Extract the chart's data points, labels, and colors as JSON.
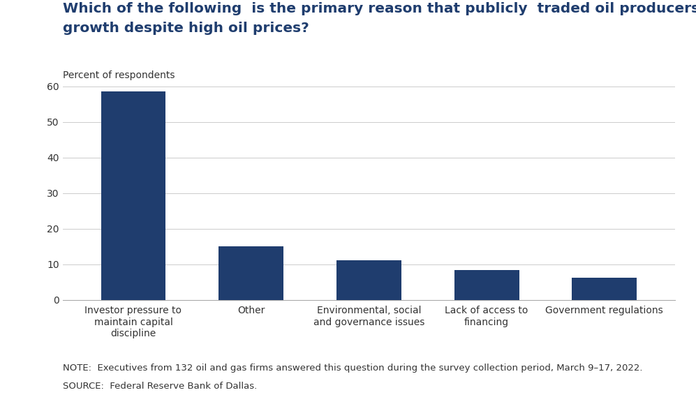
{
  "title_line1": "Which of the following  is the primary reason that publicly  traded oil producers are restraining",
  "title_line2": "growth despite high oil prices?",
  "ylabel": "Percent of respondents",
  "categories": [
    "Investor pressure to\nmaintain capital\ndiscipline",
    "Other",
    "Environmental, social\nand governance issues",
    "Lack of access to\nfinancing",
    "Government regulations"
  ],
  "values": [
    58.5,
    15.0,
    11.2,
    8.4,
    6.2
  ],
  "bar_color": "#1f3d6e",
  "ylim": [
    0,
    60
  ],
  "yticks": [
    0,
    10,
    20,
    30,
    40,
    50,
    60
  ],
  "note_line1": "NOTE:  Executives from 132 oil and gas firms answered this question during the survey collection period, March 9–17, 2022.",
  "note_line2": "SOURCE:  Federal Reserve Bank of Dallas.",
  "title_color": "#1f3d6e",
  "title_fontsize": 14.5,
  "ylabel_fontsize": 10,
  "tick_fontsize": 10,
  "note_fontsize": 9.5,
  "background_color": "#ffffff"
}
